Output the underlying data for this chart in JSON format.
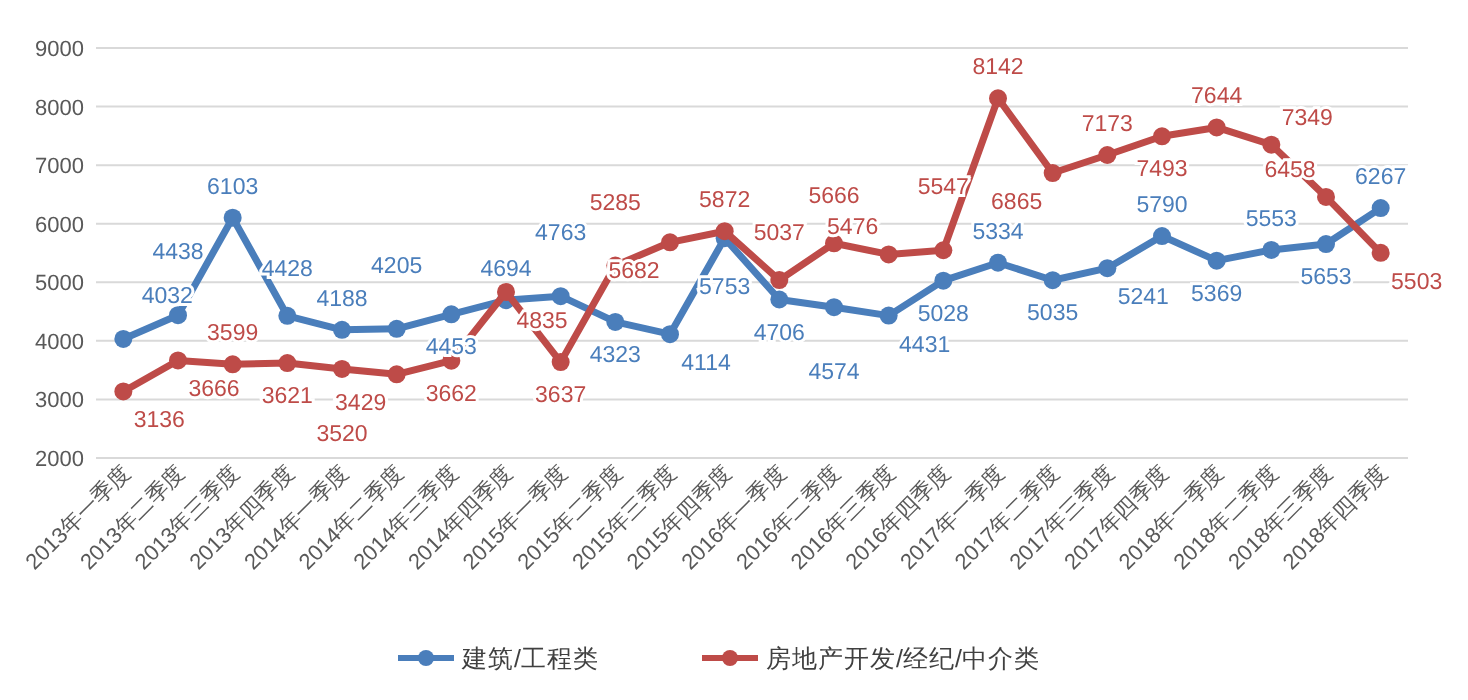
{
  "chart_data": {
    "type": "line",
    "categories": [
      "2013年一季度",
      "2013年二季度",
      "2013年三季度",
      "2013年四季度",
      "2014年一季度",
      "2014年二季度",
      "2014年三季度",
      "2014年四季度",
      "2015年一季度",
      "2015年二季度",
      "2015年三季度",
      "2015年四季度",
      "2016年一季度",
      "2016年二季度",
      "2016年三季度",
      "2016年四季度",
      "2017年一季度",
      "2017年二季度",
      "2017年三季度",
      "2017年四季度",
      "2018年一季度",
      "2018年二季度",
      "2018年三季度",
      "2018年四季度"
    ],
    "series": [
      {
        "name": "建筑/工程类",
        "color": "#4a7ebb",
        "values": [
          4032,
          4438,
          6103,
          4428,
          4188,
          4205,
          4453,
          4694,
          4763,
          4323,
          4114,
          5753,
          4706,
          4574,
          4431,
          5028,
          5334,
          5035,
          5241,
          5790,
          5369,
          5553,
          5653,
          6267
        ]
      },
      {
        "name": "房地产开发/经纪/中介类",
        "color": "#be4b48",
        "values": [
          3136,
          3666,
          3599,
          3621,
          3520,
          3429,
          3662,
          4835,
          3637,
          5285,
          5682,
          5872,
          5037,
          5666,
          5476,
          5547,
          8142,
          6865,
          7173,
          7493,
          7644,
          7349,
          6458,
          5503
        ]
      }
    ],
    "ylim": [
      2000,
      9000
    ],
    "yticks": [
      2000,
      3000,
      4000,
      5000,
      6000,
      7000,
      8000,
      9000
    ],
    "grid": "y",
    "legend": "bottom",
    "marker": "circle",
    "line_style": "solid",
    "data_labels": true
  }
}
